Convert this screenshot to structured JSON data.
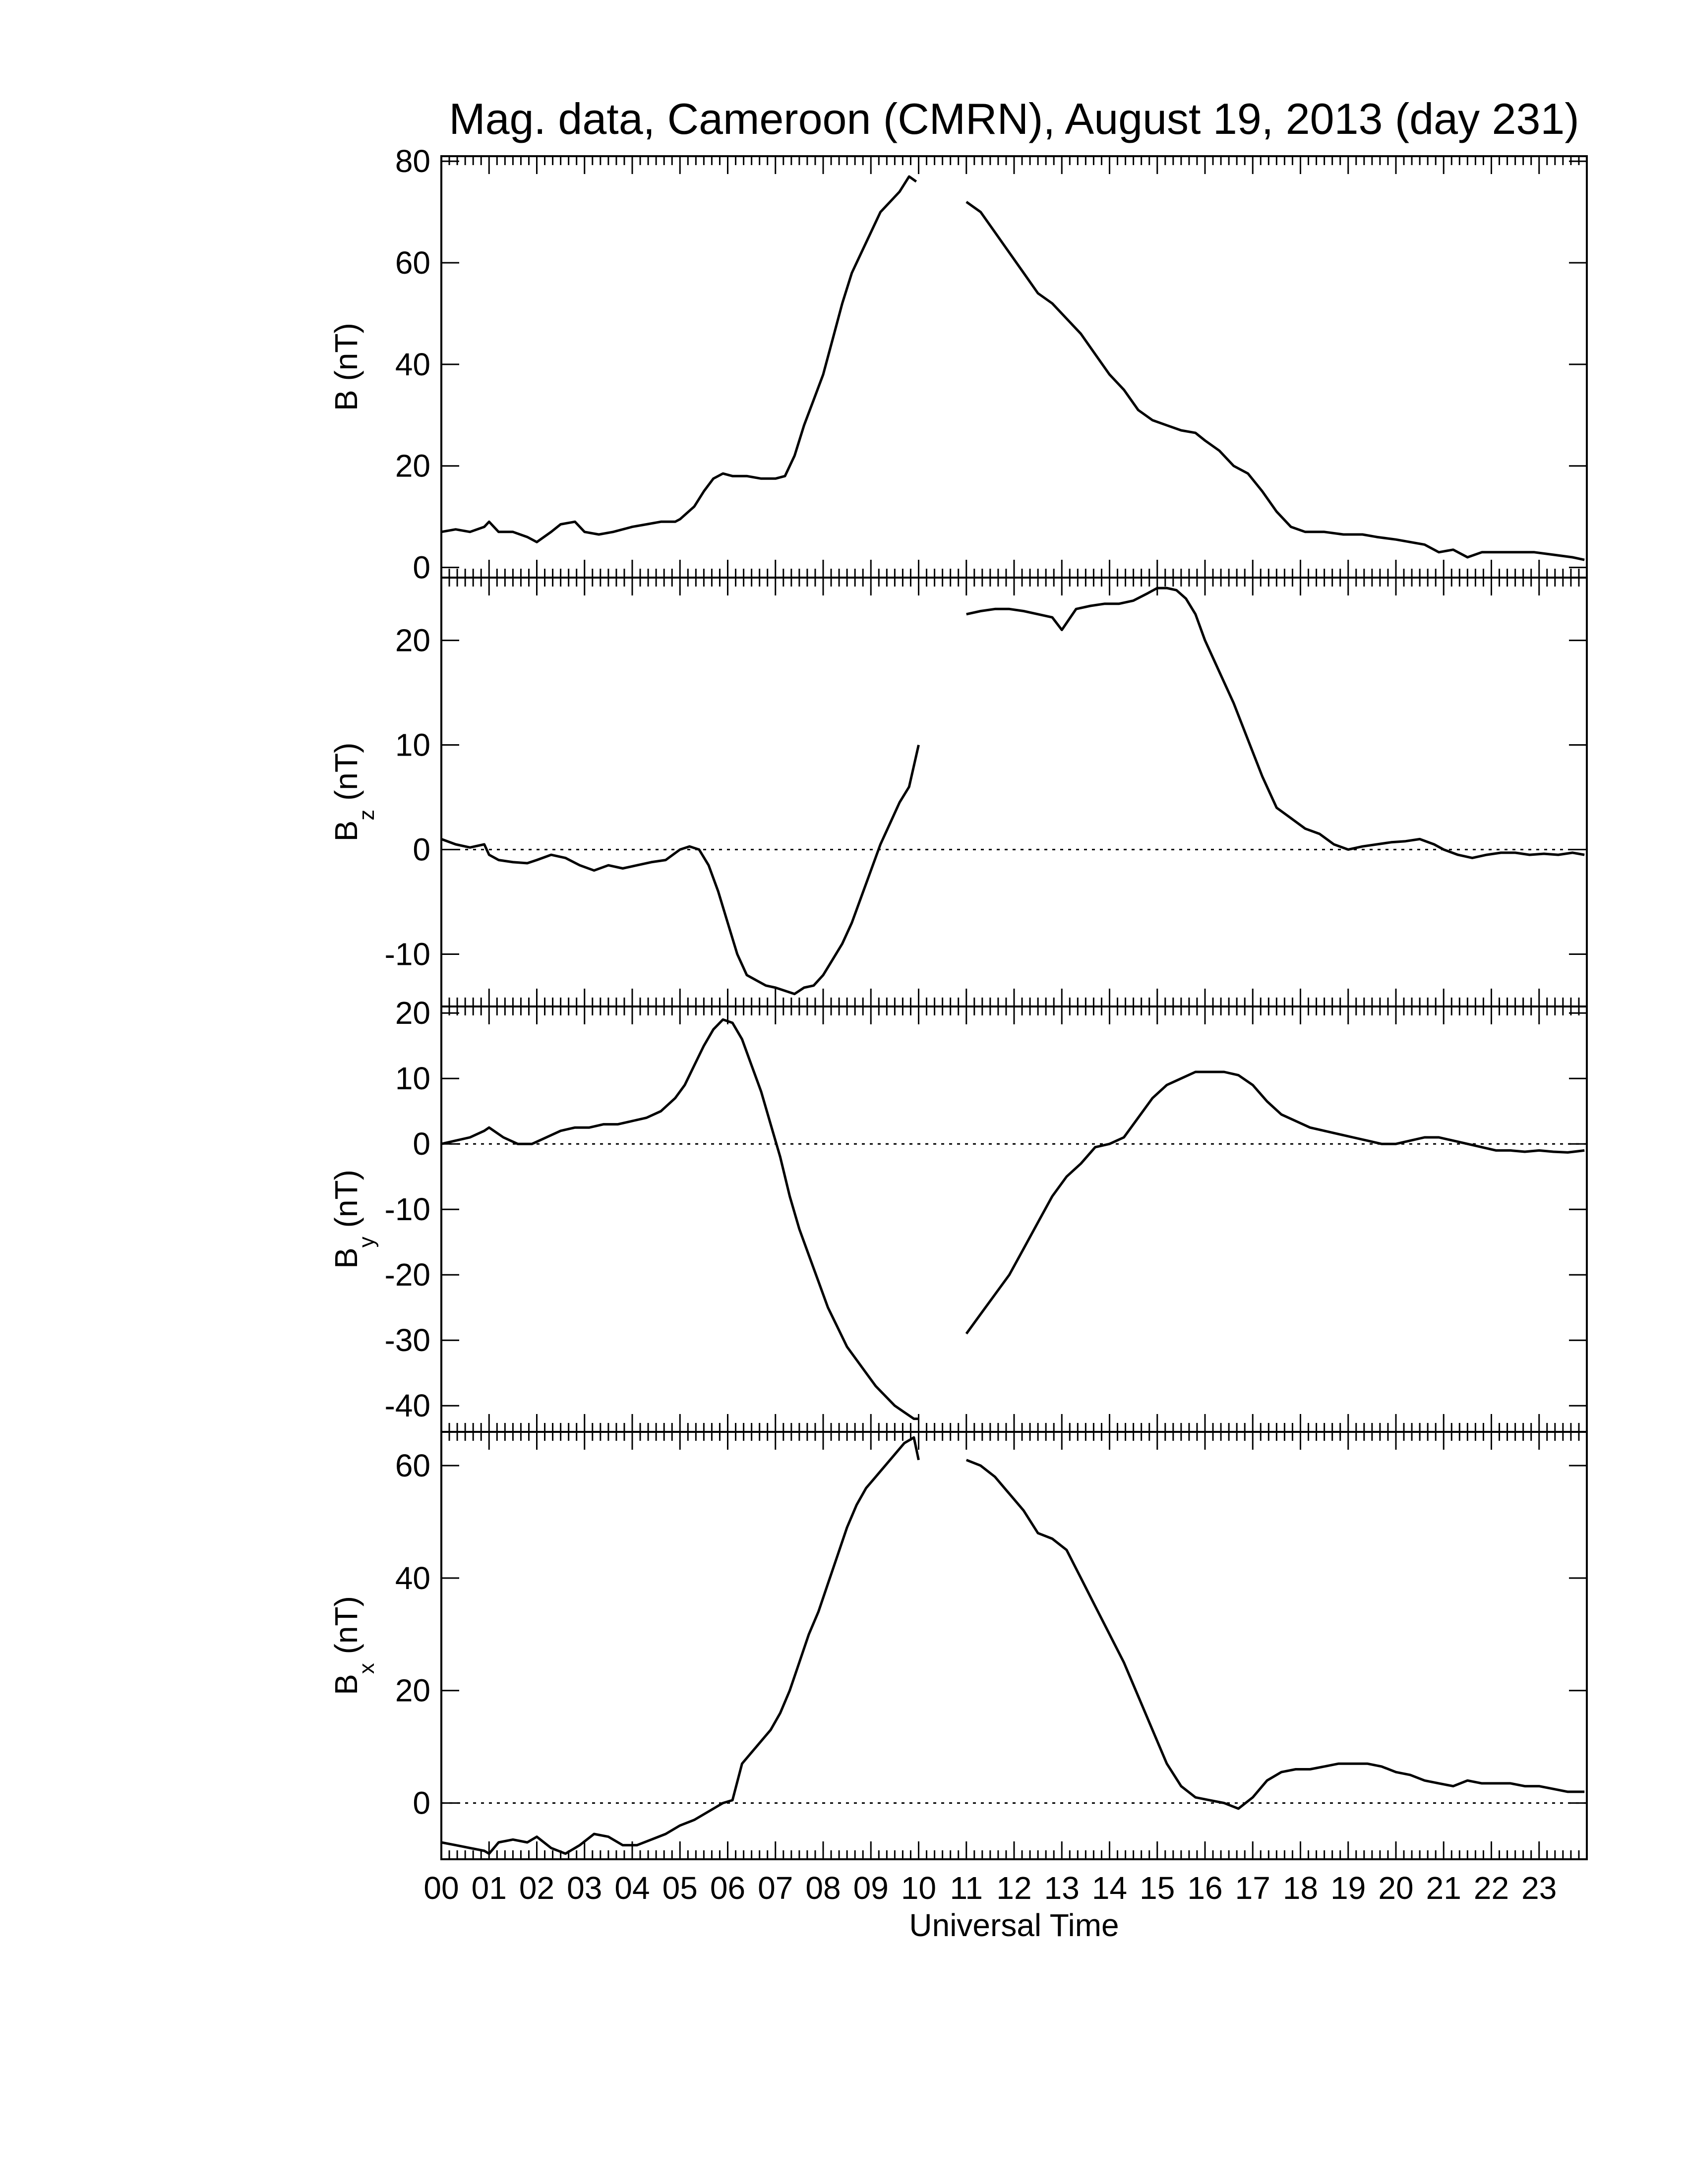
{
  "chart_data": {
    "type": "line",
    "title": "Mag. data, Cameroon (CMRN), August 19, 2013 (day 231)",
    "xlabel": "Universal Time",
    "x_tick_labels": [
      "00",
      "01",
      "02",
      "03",
      "04",
      "05",
      "06",
      "07",
      "08",
      "09",
      "10",
      "11",
      "12",
      "13",
      "14",
      "15",
      "16",
      "17",
      "18",
      "19",
      "20",
      "21",
      "22",
      "23"
    ],
    "xlim": [
      0,
      24
    ],
    "grid": false,
    "panels": [
      {
        "id": "B",
        "ylabel_main": "B (nT)",
        "ylabel_sub": "",
        "ylim": [
          -2,
          81
        ],
        "yticks": [
          0,
          20,
          40,
          60,
          80
        ],
        "ytick_labels": [
          "0",
          "20",
          "40",
          "60",
          "80"
        ],
        "zero_line": false,
        "segments": [
          {
            "x": [
              0,
              0.3,
              0.6,
              0.9,
              1.0,
              1.2,
              1.5,
              1.8,
              2.0,
              2.3,
              2.5,
              2.8,
              3.0,
              3.3,
              3.6,
              4.0,
              4.3,
              4.6,
              4.9,
              5.0,
              5.3,
              5.5,
              5.7,
              5.9,
              6.1,
              6.4,
              6.7,
              7.0,
              7.2,
              7.4,
              7.6,
              7.8,
              8.0,
              8.2,
              8.4,
              8.6,
              8.8,
              9.0,
              9.2,
              9.4,
              9.6,
              9.8,
              9.95
            ],
            "y": [
              7,
              7.5,
              7,
              8,
              9,
              7,
              7,
              6,
              5,
              7,
              8.5,
              9,
              7,
              6.5,
              7,
              8,
              8.5,
              9,
              9,
              9.5,
              12,
              15,
              17.5,
              18.5,
              18,
              18,
              17.5,
              17.5,
              18,
              22,
              28,
              33,
              38,
              45,
              52,
              58,
              62,
              66,
              70,
              72,
              74,
              77,
              76
            ]
          },
          {
            "x": [
              11.0,
              11.3,
              11.6,
              11.9,
              12.2,
              12.5,
              12.8,
              13.1,
              13.4,
              13.7,
              14.0,
              14.3,
              14.6,
              14.9,
              15.2,
              15.5,
              15.8,
              16.0,
              16.3,
              16.6,
              16.9,
              17.2,
              17.5,
              17.8,
              18.1,
              18.5,
              18.9,
              19.3,
              19.6,
              20.0,
              20.3,
              20.6,
              20.9,
              21.2,
              21.5,
              21.8,
              22.1,
              22.5,
              22.9,
              23.3,
              23.7,
              23.95
            ],
            "y": [
              72,
              70,
              66,
              62,
              58,
              54,
              52,
              49,
              46,
              42,
              38,
              35,
              31,
              29,
              28,
              27,
              26.5,
              25,
              23,
              20,
              18.5,
              15,
              11,
              8,
              7,
              7,
              6.5,
              6.5,
              6,
              5.5,
              5,
              4.5,
              3,
              3.5,
              2,
              3,
              3,
              3,
              3,
              2.5,
              2,
              1.5
            ]
          }
        ]
      },
      {
        "id": "Bz",
        "ylabel_main": "B",
        "ylabel_sub": "z",
        "ylabel_unit": " (nT)",
        "ylim": [
          -15,
          26
        ],
        "yticks": [
          -10,
          0,
          10,
          20
        ],
        "ytick_labels": [
          "-10",
          "0",
          "10",
          "20"
        ],
        "zero_line": true,
        "segments": [
          {
            "x": [
              0,
              0.3,
              0.6,
              0.9,
              1.0,
              1.2,
              1.5,
              1.8,
              2.0,
              2.3,
              2.6,
              2.9,
              3.2,
              3.5,
              3.8,
              4.1,
              4.4,
              4.7,
              5.0,
              5.2,
              5.4,
              5.6,
              5.8,
              6.0,
              6.2,
              6.4,
              6.6,
              6.8,
              7.0,
              7.2,
              7.4,
              7.6,
              7.8,
              8.0,
              8.2,
              8.4,
              8.6,
              8.8,
              9.0,
              9.2,
              9.4,
              9.6,
              9.8,
              10.0
            ],
            "y": [
              1,
              0.5,
              0.2,
              0.5,
              -0.5,
              -1,
              -1.2,
              -1.3,
              -1,
              -0.5,
              -0.8,
              -1.5,
              -2,
              -1.5,
              -1.8,
              -1.5,
              -1.2,
              -1,
              0,
              0.3,
              0,
              -1.5,
              -4,
              -7,
              -10,
              -12,
              -12.5,
              -13,
              -13.2,
              -13.5,
              -13.8,
              -13.2,
              -13,
              -12,
              -10.5,
              -9,
              -7,
              -4.5,
              -2,
              0.5,
              2.5,
              4.5,
              6,
              10
            ]
          },
          {
            "x": [
              11.0,
              11.3,
              11.6,
              11.9,
              12.2,
              12.5,
              12.8,
              13.0,
              13.3,
              13.6,
              13.9,
              14.2,
              14.5,
              14.8,
              15.0,
              15.2,
              15.4,
              15.6,
              15.8,
              16.0,
              16.3,
              16.6,
              16.9,
              17.2,
              17.5,
              17.8,
              18.1,
              18.4,
              18.7,
              19.0,
              19.3,
              19.6,
              19.9,
              20.2,
              20.5,
              20.8,
              21.0,
              21.3,
              21.6,
              21.9,
              22.2,
              22.5,
              22.8,
              23.1,
              23.4,
              23.7,
              23.95
            ],
            "y": [
              22.5,
              22.8,
              23,
              23,
              22.8,
              22.5,
              22.2,
              21,
              23,
              23.3,
              23.5,
              23.5,
              23.8,
              24.5,
              25,
              25,
              24.8,
              24,
              22.5,
              20,
              17,
              14,
              10.5,
              7,
              4,
              3,
              2,
              1.5,
              0.5,
              0,
              0.3,
              0.5,
              0.7,
              0.8,
              1,
              0.5,
              0,
              -0.5,
              -0.8,
              -0.5,
              -0.3,
              -0.3,
              -0.5,
              -0.4,
              -0.5,
              -0.3,
              -0.5
            ]
          }
        ]
      },
      {
        "id": "By",
        "ylabel_main": "B",
        "ylabel_sub": "y",
        "ylabel_unit": " (nT)",
        "ylim": [
          -44,
          21
        ],
        "yticks": [
          -40,
          -30,
          -20,
          -10,
          0,
          10,
          20
        ],
        "ytick_labels": [
          "-40",
          "-30",
          "-20",
          "-10",
          "0",
          "10",
          "20"
        ],
        "zero_line": true,
        "segments": [
          {
            "x": [
              0,
              0.3,
              0.6,
              0.9,
              1.0,
              1.3,
              1.6,
              1.9,
              2.2,
              2.5,
              2.8,
              3.1,
              3.4,
              3.7,
              4.0,
              4.3,
              4.6,
              4.9,
              5.1,
              5.3,
              5.5,
              5.7,
              5.9,
              6.1,
              6.3,
              6.5,
              6.7,
              6.9,
              7.1,
              7.3,
              7.5,
              7.7,
              7.9,
              8.1,
              8.3,
              8.5,
              8.7,
              8.9,
              9.1,
              9.3,
              9.5,
              9.7,
              9.9,
              10.0
            ],
            "y": [
              0,
              0.5,
              1,
              2,
              2.5,
              1,
              0,
              0,
              1,
              2,
              2.5,
              2.5,
              3,
              3,
              3.5,
              4,
              5,
              7,
              9,
              12,
              15,
              17.5,
              19,
              18.5,
              16,
              12,
              8,
              3,
              -2,
              -8,
              -13,
              -17,
              -21,
              -25,
              -28,
              -31,
              -33,
              -35,
              -37,
              -38.5,
              -40,
              -41,
              -42,
              -42
            ]
          },
          {
            "x": [
              11.0,
              11.3,
              11.6,
              11.9,
              12.2,
              12.5,
              12.8,
              13.1,
              13.4,
              13.7,
              14.0,
              14.3,
              14.6,
              14.9,
              15.2,
              15.5,
              15.8,
              16.1,
              16.4,
              16.7,
              17.0,
              17.3,
              17.6,
              17.9,
              18.2,
              18.5,
              18.8,
              19.1,
              19.4,
              19.7,
              20.0,
              20.3,
              20.6,
              20.9,
              21.2,
              21.5,
              21.8,
              22.1,
              22.4,
              22.7,
              23.0,
              23.3,
              23.6,
              23.95
            ],
            "y": [
              -29,
              -26,
              -23,
              -20,
              -16,
              -12,
              -8,
              -5,
              -3,
              -0.5,
              0,
              1,
              4,
              7,
              9,
              10,
              11,
              11,
              11,
              10.5,
              9,
              6.5,
              4.5,
              3.5,
              2.5,
              2,
              1.5,
              1,
              0.5,
              0,
              0,
              0.5,
              1,
              1,
              0.5,
              0,
              -0.5,
              -1,
              -1,
              -1.2,
              -1,
              -1.2,
              -1.3,
              -1
            ]
          }
        ]
      },
      {
        "id": "Bx",
        "ylabel_main": "B",
        "ylabel_sub": "x",
        "ylabel_unit": " (nT)",
        "ylim": [
          -10,
          66
        ],
        "yticks": [
          0,
          20,
          40,
          60
        ],
        "ytick_labels": [
          "0",
          "20",
          "40",
          "60"
        ],
        "zero_line": true,
        "segments": [
          {
            "x": [
              0,
              0.3,
              0.6,
              0.9,
              1.0,
              1.2,
              1.5,
              1.8,
              2.0,
              2.3,
              2.6,
              2.9,
              3.2,
              3.5,
              3.8,
              4.1,
              4.4,
              4.7,
              5.0,
              5.3,
              5.6,
              5.9,
              6.1,
              6.3,
              6.5,
              6.7,
              6.9,
              7.1,
              7.3,
              7.5,
              7.7,
              7.9,
              8.1,
              8.3,
              8.5,
              8.7,
              8.9,
              9.1,
              9.3,
              9.5,
              9.7,
              9.9,
              10.0
            ],
            "y": [
              -7,
              -7.5,
              -8,
              -8.5,
              -9,
              -7,
              -6.5,
              -7,
              -6,
              -8,
              -9,
              -7.5,
              -5.5,
              -6,
              -7.5,
              -7.5,
              -6.5,
              -5.5,
              -4,
              -3,
              -1.5,
              0,
              0.5,
              7,
              9,
              11,
              13,
              16,
              20,
              25,
              30,
              34,
              39,
              44,
              49,
              53,
              56,
              58,
              60,
              62,
              64,
              65,
              61
            ]
          },
          {
            "x": [
              11.0,
              11.3,
              11.6,
              11.9,
              12.2,
              12.5,
              12.8,
              13.1,
              13.4,
              13.7,
              14.0,
              14.3,
              14.6,
              14.9,
              15.2,
              15.5,
              15.8,
              16.1,
              16.4,
              16.7,
              17.0,
              17.3,
              17.6,
              17.9,
              18.2,
              18.5,
              18.8,
              19.1,
              19.4,
              19.7,
              20.0,
              20.3,
              20.6,
              20.9,
              21.2,
              21.5,
              21.8,
              22.1,
              22.4,
              22.7,
              23.0,
              23.3,
              23.6,
              23.95
            ],
            "y": [
              61,
              60,
              58,
              55,
              52,
              48,
              47,
              45,
              40,
              35,
              30,
              25,
              19,
              13,
              7,
              3,
              1,
              0.5,
              0,
              -1,
              1,
              4,
              5.5,
              6,
              6,
              6.5,
              7,
              7,
              7,
              6.5,
              5.5,
              5,
              4,
              3.5,
              3,
              4,
              3.5,
              3.5,
              3.5,
              3,
              3,
              2.5,
              2,
              2
            ]
          }
        ]
      }
    ]
  }
}
